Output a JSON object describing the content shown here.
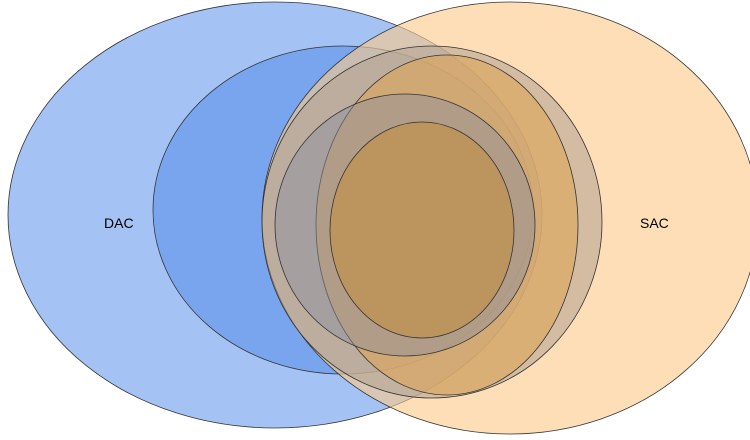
{
  "diagram": {
    "type": "venn",
    "sets": [
      {
        "id": "dac",
        "label": "DAC",
        "color": "#6d9eeb"
      },
      {
        "id": "sac",
        "label": "SAC",
        "color": "#f9cb9c"
      }
    ],
    "colors": {
      "dac_outer": "#a4c2f4",
      "dac_inner": "#6d9eeb",
      "overlap_gray": "#9a9a9a",
      "sac_outer": "#fcd9a8",
      "sac_inner": "#e0a25a",
      "core": "#c0924f"
    }
  }
}
